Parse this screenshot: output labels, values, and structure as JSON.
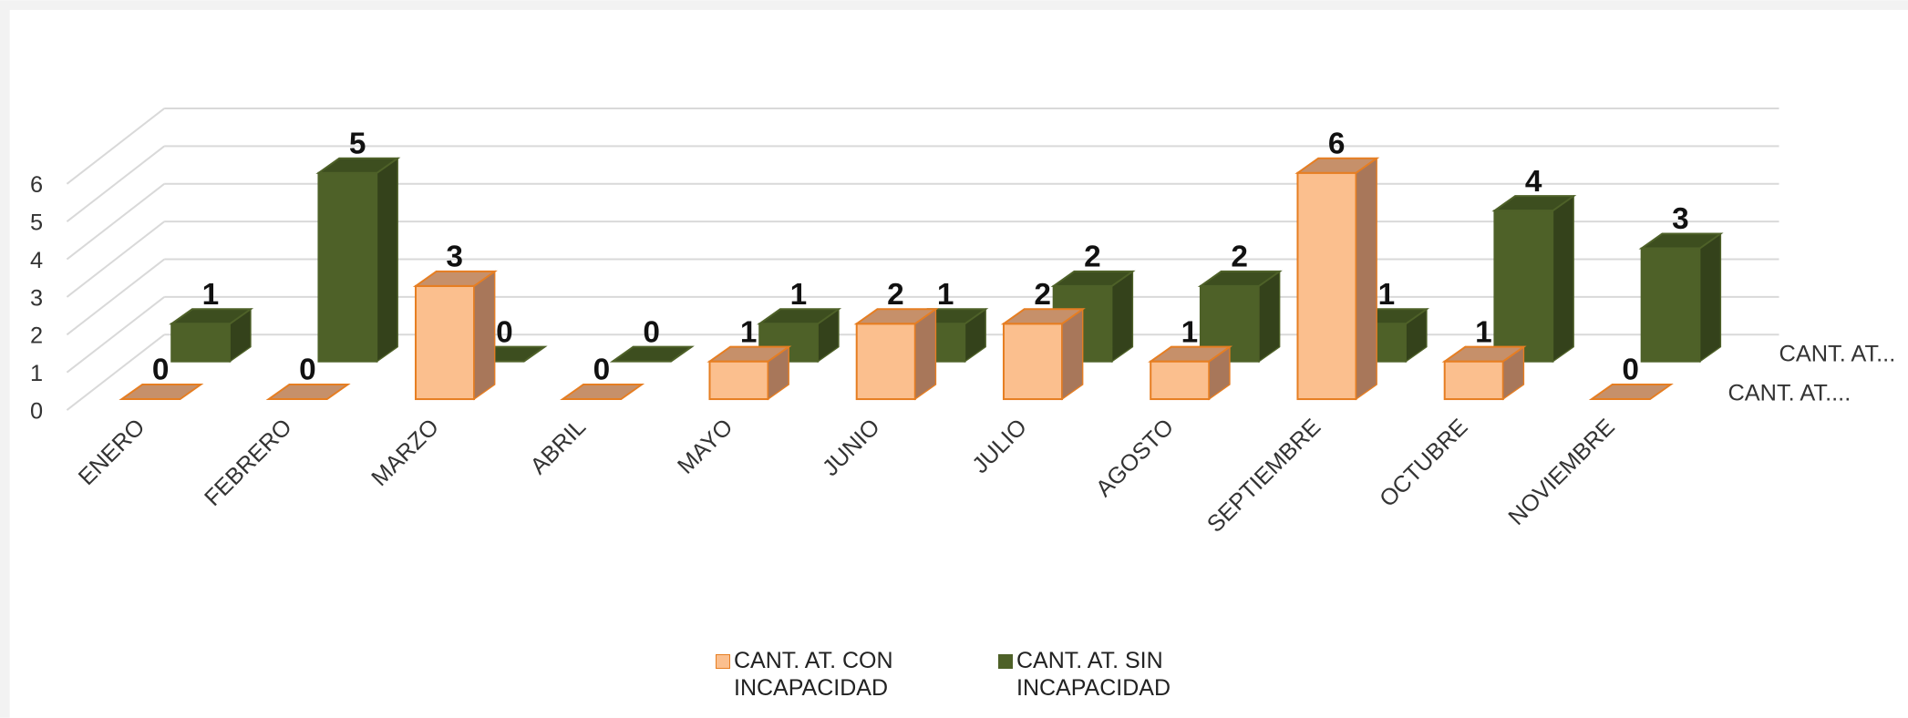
{
  "chart_data": {
    "type": "bar3d",
    "categories": [
      "ENERO",
      "FEBRERO",
      "MARZO",
      "ABRIL",
      "MAYO",
      "JUNIO",
      "JULIO",
      "AGOSTO",
      "SEPTIEMBRE",
      "OCTUBRE",
      "NOVIEMBRE"
    ],
    "series": [
      {
        "name": "CANT. AT. CON INCAPACIDAD",
        "depth_label": "CANT. AT....",
        "color": "#fbbf8e",
        "edge": "#e67e22",
        "side": "#a8775a",
        "top": "#c6906a",
        "values": [
          0,
          0,
          3,
          0,
          1,
          2,
          2,
          1,
          6,
          1,
          0
        ]
      },
      {
        "name": "CANT. AT. SIN INCAPACIDAD",
        "depth_label": "CANT. AT...",
        "color": "#4e6128",
        "edge": "#4e6128",
        "side": "#34421b",
        "top": "#3d4e1f",
        "values": [
          1,
          5,
          0,
          0,
          1,
          1,
          2,
          2,
          1,
          4,
          3
        ]
      }
    ],
    "ylim": [
      0,
      6
    ],
    "yticks": [
      0,
      1,
      2,
      3,
      4,
      5,
      6
    ],
    "grid": true,
    "legend": "bottom"
  }
}
